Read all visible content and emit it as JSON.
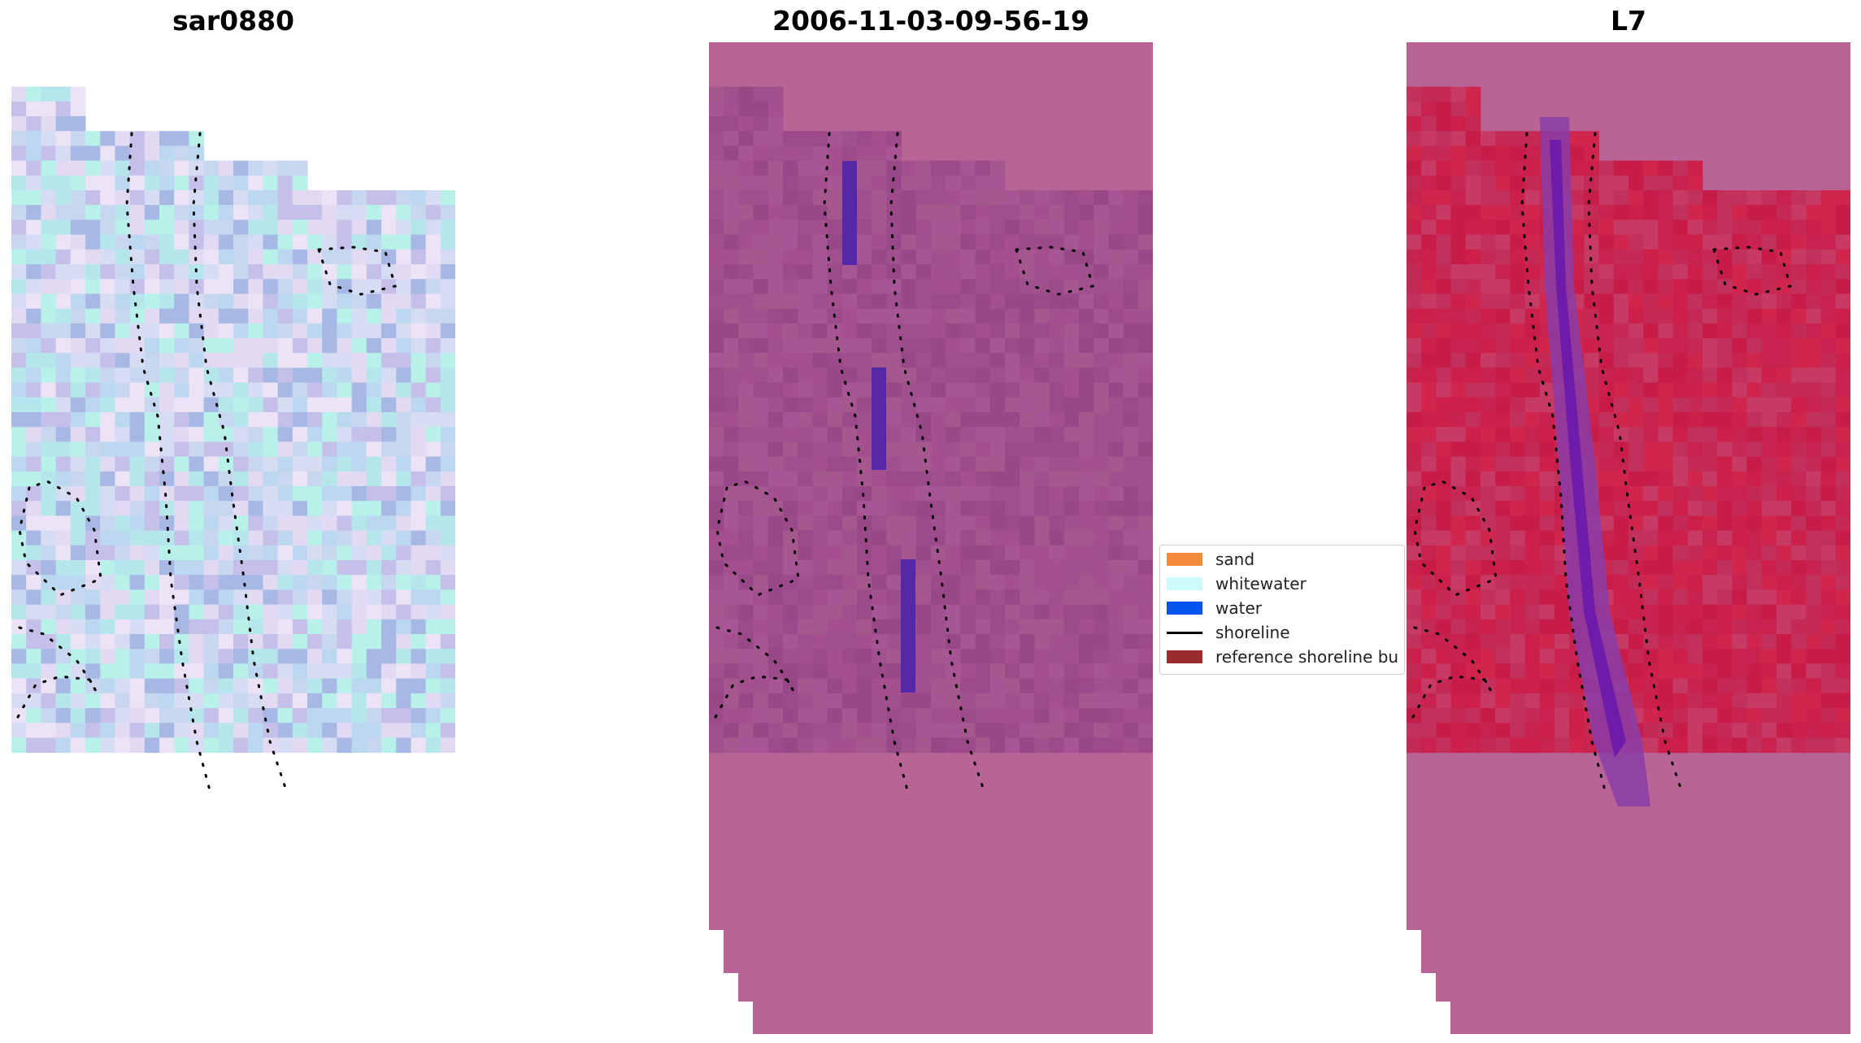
{
  "panels": [
    {
      "title": "sar0880",
      "style": "rgb",
      "bg_color": "#d4d2ee"
    },
    {
      "title": "2006-11-03-09-56-19",
      "style": "classified",
      "bg_color": "#a44f8e"
    },
    {
      "title": "L7",
      "style": "index",
      "bg_color": "#c8234f"
    }
  ],
  "colors": {
    "nodata": "#b86496",
    "sand": "#f58a3a",
    "whitewater": "#ccf9f9",
    "water": "#0655f0",
    "shoreline": "#000000",
    "reference_buffer": "#982c2f",
    "water_stripe": "#5528a8",
    "index_channel": "#8a3ca8"
  },
  "legend": {
    "items": [
      {
        "label": "sand",
        "kind": "patch",
        "color": "#f58a3a"
      },
      {
        "label": "whitewater",
        "kind": "patch",
        "color": "#ccf9f9"
      },
      {
        "label": "water",
        "kind": "patch",
        "color": "#0655f0"
      },
      {
        "label": "shoreline",
        "kind": "line",
        "color": "#000000"
      },
      {
        "label": "reference shoreline bu",
        "kind": "patch",
        "color": "#982c2f"
      }
    ]
  }
}
